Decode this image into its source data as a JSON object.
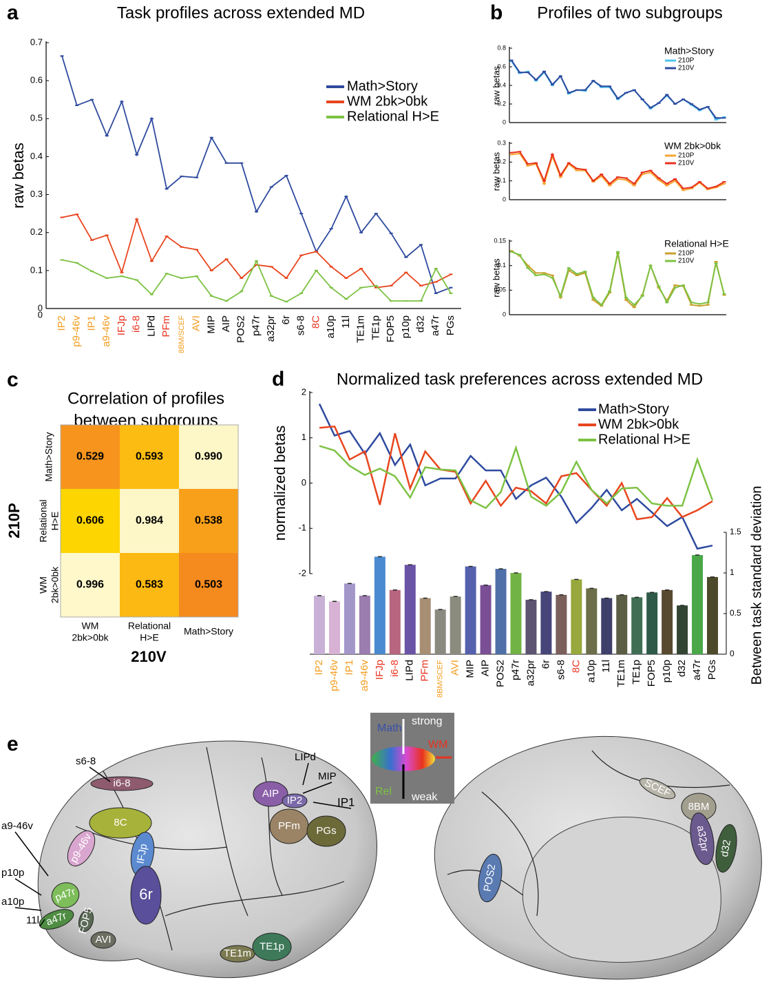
{
  "chart_data": [
    {
      "panel": "a",
      "type": "line",
      "title": "Task profiles across extended MD",
      "ylabel": "raw betas",
      "categories": [
        "IP2",
        "p9-46v",
        "IP1",
        "a9-46v",
        "IFJp",
        "i6-8",
        "LIPd",
        "PFm",
        "8BM/SCEF",
        "AVI",
        "MIP",
        "AIP",
        "POS2",
        "p47r",
        "a32pr",
        "6r",
        "s6-8",
        "8C",
        "a10p",
        "11l",
        "TE1m",
        "TE1p",
        "FOP5",
        "p10p",
        "d32",
        "a47r",
        "PGs"
      ],
      "category_colors": [
        "#f39c1f",
        "#f39c1f",
        "#f39c1f",
        "#f39c1f",
        "#e8321d",
        "#e8321d",
        "#000000",
        "#e8321d",
        "#f39c1f",
        "#f39c1f",
        "#000000",
        "#000000",
        "#000000",
        "#000000",
        "#000000",
        "#000000",
        "#000000",
        "#e8321d",
        "#000000",
        "#000000",
        "#000000",
        "#000000",
        "#000000",
        "#000000",
        "#000000",
        "#000000",
        "#000000"
      ],
      "series": [
        {
          "name": "Math>Story",
          "color": "#2e4a9e",
          "values": [
            0.665,
            0.535,
            0.55,
            0.455,
            0.545,
            0.405,
            0.5,
            0.315,
            0.348,
            0.345,
            0.45,
            0.383,
            0.383,
            0.255,
            0.32,
            0.35,
            0.25,
            0.15,
            0.21,
            0.295,
            0.2,
            0.25,
            0.198,
            0.135,
            0.168,
            0.04,
            0.055
          ]
        },
        {
          "name": "WM 2bk>0bk",
          "color": "#e8451d",
          "values": [
            0.24,
            0.248,
            0.18,
            0.193,
            0.095,
            0.235,
            0.125,
            0.19,
            0.162,
            0.155,
            0.1,
            0.13,
            0.08,
            0.115,
            0.11,
            0.08,
            0.14,
            0.15,
            0.11,
            0.08,
            0.105,
            0.055,
            0.06,
            0.095,
            0.06,
            0.07,
            0.09
          ]
        },
        {
          "name": "Relational H>E",
          "color": "#7dc243",
          "values": [
            0.128,
            0.12,
            0.098,
            0.08,
            0.085,
            0.075,
            0.037,
            0.092,
            0.08,
            0.085,
            0.033,
            0.02,
            0.045,
            0.125,
            0.033,
            0.018,
            0.04,
            0.1,
            0.055,
            0.025,
            0.055,
            0.06,
            0.02,
            0.02,
            0.02,
            0.105,
            0.04
          ]
        }
      ],
      "ylim": [
        0,
        0.7
      ],
      "yticks": [
        0,
        0.1,
        0.2,
        0.3,
        0.4,
        0.5,
        0.6,
        0.7
      ]
    },
    {
      "panel": "b",
      "type": "line",
      "title": "Profiles of two subgroups",
      "ylabel": "raw betas",
      "legend_title": "Math>Story",
      "series": [
        {
          "name": "210P",
          "color": "#4cc3f0",
          "values": [
            0.66,
            0.53,
            0.55,
            0.45,
            0.54,
            0.4,
            0.5,
            0.31,
            0.35,
            0.34,
            0.45,
            0.38,
            0.38,
            0.25,
            0.32,
            0.35,
            0.25,
            0.15,
            0.21,
            0.29,
            0.2,
            0.25,
            0.19,
            0.13,
            0.17,
            0.03,
            0.06
          ]
        },
        {
          "name": "210V",
          "color": "#2e4a9e",
          "values": [
            0.67,
            0.54,
            0.54,
            0.46,
            0.55,
            0.41,
            0.5,
            0.32,
            0.35,
            0.35,
            0.45,
            0.39,
            0.39,
            0.26,
            0.32,
            0.35,
            0.25,
            0.16,
            0.21,
            0.3,
            0.2,
            0.25,
            0.2,
            0.14,
            0.17,
            0.05,
            0.05
          ]
        }
      ],
      "ylim": [
        0,
        0.8
      ],
      "yticks": [
        0,
        0.2,
        0.4,
        0.6,
        0.8
      ]
    },
    {
      "type": "line",
      "ylabel": "raw betas",
      "legend_title": "WM 2bk>0bk",
      "series": [
        {
          "name": "210P",
          "color": "#f7a531",
          "values": [
            0.24,
            0.245,
            0.18,
            0.19,
            0.085,
            0.23,
            0.12,
            0.19,
            0.155,
            0.155,
            0.095,
            0.125,
            0.075,
            0.11,
            0.105,
            0.075,
            0.135,
            0.145,
            0.105,
            0.075,
            0.1,
            0.05,
            0.06,
            0.09,
            0.055,
            0.065,
            0.085
          ]
        },
        {
          "name": "210V",
          "color": "#e8321d",
          "values": [
            0.25,
            0.255,
            0.19,
            0.195,
            0.1,
            0.24,
            0.13,
            0.195,
            0.165,
            0.16,
            0.1,
            0.135,
            0.085,
            0.12,
            0.115,
            0.085,
            0.145,
            0.155,
            0.115,
            0.085,
            0.11,
            0.06,
            0.065,
            0.095,
            0.06,
            0.07,
            0.095
          ]
        }
      ],
      "ylim": [
        0,
        0.3
      ],
      "yticks": [
        0,
        0.1,
        0.2,
        0.3
      ]
    },
    {
      "type": "line",
      "ylabel": "raw betas",
      "legend_title": "Relational H>E",
      "series": [
        {
          "name": "210P",
          "color": "#c8a12a",
          "values": [
            0.13,
            0.12,
            0.1,
            0.085,
            0.085,
            0.08,
            0.035,
            0.09,
            0.08,
            0.085,
            0.03,
            0.018,
            0.045,
            0.125,
            0.03,
            0.015,
            0.04,
            0.1,
            0.055,
            0.028,
            0.06,
            0.058,
            0.02,
            0.018,
            0.02,
            0.108,
            0.04
          ]
        },
        {
          "name": "210V",
          "color": "#7dc243",
          "values": [
            0.128,
            0.122,
            0.095,
            0.08,
            0.082,
            0.075,
            0.038,
            0.095,
            0.083,
            0.088,
            0.035,
            0.02,
            0.048,
            0.128,
            0.035,
            0.02,
            0.038,
            0.1,
            0.058,
            0.025,
            0.055,
            0.06,
            0.025,
            0.022,
            0.025,
            0.105,
            0.042
          ]
        }
      ],
      "ylim": [
        0,
        0.15
      ],
      "yticks": [
        0,
        0.05,
        0.1,
        0.15
      ]
    },
    {
      "panel": "c",
      "type": "heatmap",
      "title": [
        "Correlation of profiles",
        "between subgroups"
      ],
      "ylabel": "210P",
      "xlabel": "210V",
      "rows": [
        [
          "Math>Story"
        ],
        [
          "Relational",
          "H>E"
        ],
        [
          "WM",
          "2bk>0bk"
        ]
      ],
      "columns": [
        [
          "WM",
          "2bk>0bk"
        ],
        [
          "Relational",
          "H>E"
        ],
        [
          "Math>Story"
        ]
      ],
      "values": [
        [
          0.529,
          0.593,
          0.99
        ],
        [
          0.606,
          0.984,
          0.538
        ],
        [
          0.996,
          0.583,
          0.503
        ]
      ],
      "value_labels": [
        [
          "0.529",
          "0.593",
          "0.990"
        ],
        [
          "0.606",
          "0.984",
          "0.538"
        ],
        [
          "0.996",
          "0.583",
          "0.503"
        ]
      ],
      "colors": [
        [
          "#f7941d",
          "#fcbc12",
          "#fdf6c7"
        ],
        [
          "#fdd500",
          "#fdf6c7",
          "#f8a01a"
        ],
        [
          "#fef8cb",
          "#fcb813",
          "#f58a1f"
        ]
      ]
    },
    {
      "panel": "d",
      "type": "line",
      "title": "Normalized task preferences across extended MD",
      "ylabel": "normalized betas",
      "y2label": "Between task standard deviation",
      "categories": [
        "IP2",
        "p9-46v",
        "IP1",
        "a9-46v",
        "IFJp",
        "i6-8",
        "LIPd",
        "PFm",
        "8BM/SCEF",
        "AVI",
        "MIP",
        "AIP",
        "POS2",
        "p47r",
        "a32pr",
        "6r",
        "s6-8",
        "8C",
        "a10p",
        "11l",
        "TE1m",
        "TE1p",
        "FOP5",
        "p10p",
        "d32",
        "a47r",
        "PGs"
      ],
      "category_colors": [
        "#f39c1f",
        "#f39c1f",
        "#f39c1f",
        "#f39c1f",
        "#e8321d",
        "#e8321d",
        "#000000",
        "#e8321d",
        "#f39c1f",
        "#f39c1f",
        "#000000",
        "#000000",
        "#000000",
        "#000000",
        "#000000",
        "#000000",
        "#000000",
        "#e8321d",
        "#000000",
        "#000000",
        "#000000",
        "#000000",
        "#000000",
        "#000000",
        "#000000",
        "#000000",
        "#000000"
      ],
      "series": [
        {
          "name": "Math>Story",
          "color": "#2e4a9e",
          "values": [
            1.75,
            1.05,
            1.15,
            0.65,
            1.1,
            0.4,
            0.85,
            -0.05,
            0.1,
            0.1,
            0.6,
            0.28,
            0.28,
            -0.35,
            -0.05,
            0.12,
            -0.3,
            -0.88,
            -0.55,
            -0.15,
            -0.6,
            -0.35,
            -0.65,
            -0.95,
            -0.75,
            -1.45,
            -1.38
          ]
        },
        {
          "name": "WM 2bk>0bk",
          "color": "#e8451d",
          "values": [
            1.22,
            1.25,
            0.52,
            0.7,
            -0.48,
            1.1,
            -0.12,
            0.7,
            0.3,
            0.25,
            -0.45,
            0.05,
            -0.5,
            -0.1,
            -0.18,
            -0.45,
            0.15,
            0.22,
            -0.15,
            -0.5,
            0,
            -0.8,
            -0.75,
            -0.33,
            -0.75,
            -0.6,
            -0.4
          ]
        },
        {
          "name": "Relational H>E",
          "color": "#7dc243",
          "values": [
            0.82,
            0.72,
            0.38,
            0.18,
            0.32,
            0.15,
            -0.32,
            0.35,
            0.3,
            0.28,
            -0.38,
            -0.55,
            -0.2,
            0.78,
            -0.3,
            -0.5,
            -0.2,
            0.47,
            -0.15,
            -0.45,
            -0.12,
            -0.1,
            -0.45,
            -0.5,
            -0.5,
            0.52,
            -0.38
          ]
        },
        {
          "type": "bar",
          "axis": "y2",
          "values": [
            0.72,
            0.65,
            0.87,
            0.72,
            1.2,
            0.79,
            1.1,
            0.69,
            0.55,
            0.71,
            1.08,
            0.85,
            1.05,
            1.0,
            0.67,
            0.77,
            0.73,
            0.92,
            0.81,
            0.69,
            0.73,
            0.7,
            0.76,
            0.79,
            0.6,
            1.22,
            0.95
          ],
          "colors": [
            "#c9b0d6",
            "#d8b2d4",
            "#a396c9",
            "#9b7db0",
            "#4a8bd0",
            "#b8657f",
            "#6a54a6",
            "#a88f74",
            "#8a8a80",
            "#8b8b7e",
            "#5561ad",
            "#7a4f95",
            "#4f6fa8",
            "#72b346",
            "#5c5470",
            "#46457a",
            "#7a5f5a",
            "#98a83d",
            "#6b6e48",
            "#3e3f6a",
            "#5b5e45",
            "#3f6e55",
            "#2f5a4a",
            "#584a30",
            "#324432",
            "#4aa848",
            "#4c4a2a"
          ]
        }
      ],
      "ylim": [
        -2,
        2
      ],
      "yticks": [
        -2,
        -1,
        0,
        1,
        2
      ],
      "y2lim": [
        0,
        1.5
      ],
      "y2ticks": [
        0,
        0.5,
        1,
        1.5
      ]
    }
  ],
  "brain": {
    "panel": "e",
    "left_regions": [
      {
        "label": "i6-8",
        "color": "#8e5a6e"
      },
      {
        "label": "8C",
        "color": "#a6b23a"
      },
      {
        "label": "p9-46v",
        "color": "#d9a6d0"
      },
      {
        "label": "IFJp",
        "color": "#5b8ad0"
      },
      {
        "label": "6r",
        "color": "#5a4f9a"
      },
      {
        "label": "AIP",
        "color": "#8a5fa8"
      },
      {
        "label": "IP2",
        "color": "#7b6aaa"
      },
      {
        "label": "PFm",
        "color": "#9b8466"
      },
      {
        "label": "PGs",
        "color": "#6d6a3a"
      },
      {
        "label": "p47r",
        "color": "#7dbd5a"
      },
      {
        "label": "a47r",
        "color": "#4f8d43"
      },
      {
        "label": "FOP5",
        "color": "#5a6a55"
      },
      {
        "label": "AVI",
        "color": "#6b6e60"
      },
      {
        "label": "TE1m",
        "color": "#7b7a50"
      },
      {
        "label": "TE1p",
        "color": "#3e7a5a"
      }
    ],
    "left_callouts": [
      "s6-8",
      "a9-46v",
      "p10p",
      "a10p",
      "11l",
      "LIPd",
      "MIP",
      "IP1"
    ],
    "right_regions": [
      {
        "label": "POS2",
        "color": "#5a7ab2"
      },
      {
        "label": "SCEF",
        "color": "#b8b6aa"
      },
      {
        "label": "8BM",
        "color": "#a39f8f"
      },
      {
        "label": "a32pr",
        "color": "#6b5a8e"
      },
      {
        "label": "d32",
        "color": "#3f5e3c"
      }
    ],
    "legend": {
      "math": "Math",
      "strong": "strong",
      "wm": "WM",
      "rel": "Rel",
      "weak": "weak"
    }
  }
}
